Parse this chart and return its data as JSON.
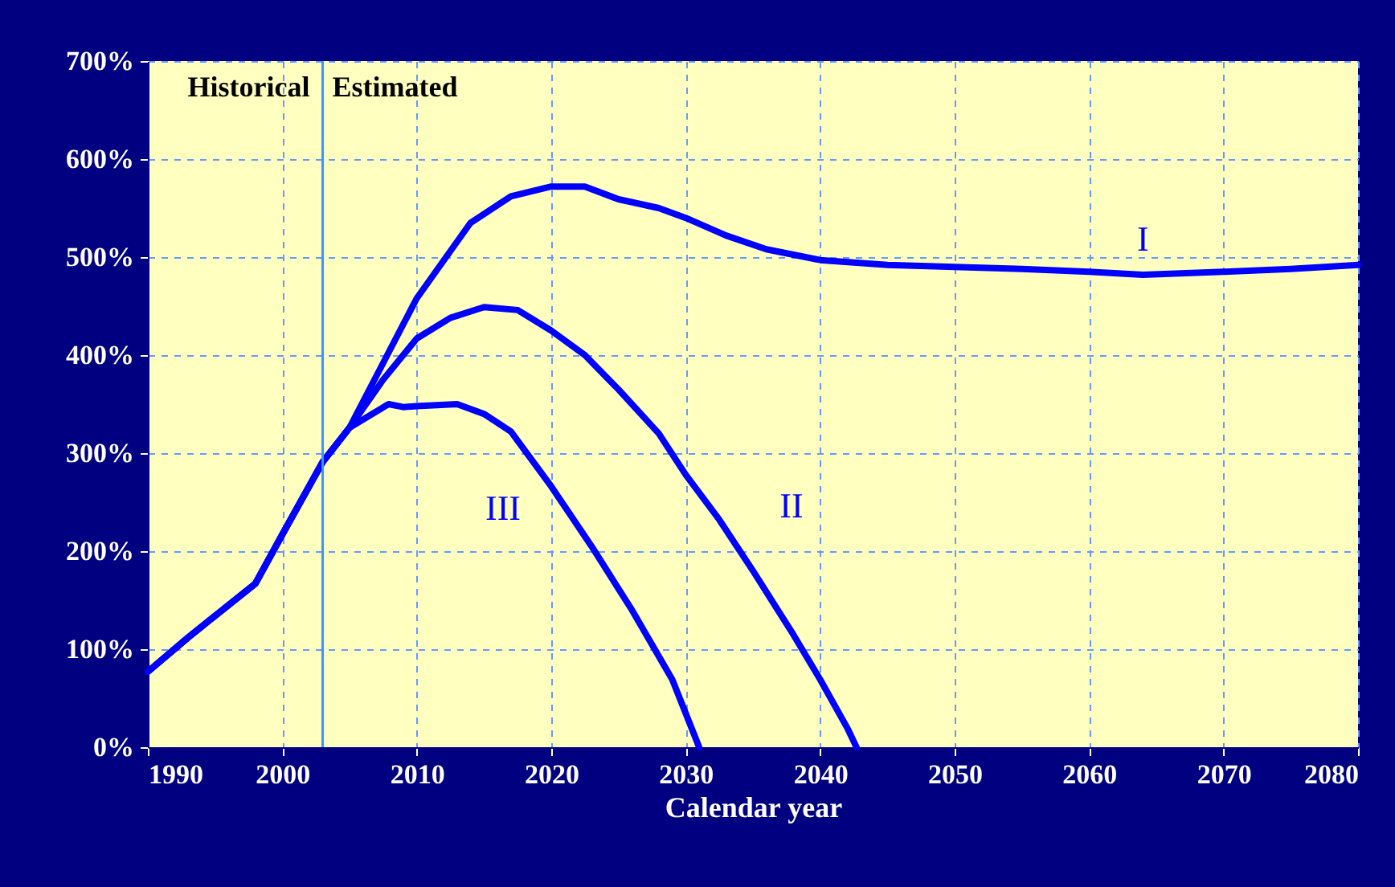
{
  "chart_data": {
    "type": "line",
    "xlabel": "Calendar year",
    "xlim": [
      1990,
      2080
    ],
    "xticks": [
      1990,
      2000,
      2010,
      2020,
      2030,
      2040,
      2050,
      2060,
      2070,
      2080
    ],
    "ylim": [
      0,
      700
    ],
    "yticks": [
      {
        "value": 0,
        "label": "0%"
      },
      {
        "value": 100,
        "label": "100%"
      },
      {
        "value": 200,
        "label": "200%"
      },
      {
        "value": 300,
        "label": "300%"
      },
      {
        "value": 400,
        "label": "400%"
      },
      {
        "value": 500,
        "label": "500%"
      },
      {
        "value": 600,
        "label": "600%"
      },
      {
        "value": 700,
        "label": "700%"
      }
    ],
    "grid": true,
    "line_style": "solid",
    "ref_lines": [
      {
        "axis": "x",
        "value": 2003,
        "color": "#3399ff"
      }
    ],
    "annotations": [
      "Historical",
      "Estimated"
    ],
    "series": [
      {
        "name": "I",
        "color": "#0000ff",
        "x": [
          1990,
          1993,
          1998,
          2000,
          2003,
          2005,
          2007.5,
          2010,
          2014,
          2017,
          2020,
          2022.5,
          2025,
          2028,
          2030,
          2033,
          2036,
          2040,
          2045,
          2050,
          2055,
          2060,
          2064,
          2070,
          2075,
          2080
        ],
        "values": [
          77,
          112,
          167,
          217,
          291,
          326,
          392,
          458,
          535,
          562,
          572,
          572,
          559,
          550,
          540,
          522,
          508,
          497,
          492,
          490,
          488,
          485,
          482,
          485,
          488,
          492
        ]
      },
      {
        "name": "II",
        "color": "#0000ff",
        "x": [
          1990,
          1993,
          1998,
          2000,
          2003,
          2005,
          2007.5,
          2010,
          2012.5,
          2015,
          2017.5,
          2020,
          2022.5,
          2025,
          2028,
          2030,
          2032.5,
          2035,
          2038,
          2040,
          2042,
          2042.7
        ],
        "values": [
          77,
          112,
          167,
          217,
          291,
          326,
          375,
          417,
          438,
          449,
          446,
          425,
          400,
          365,
          320,
          278,
          232,
          180,
          115,
          69,
          20,
          0
        ]
      },
      {
        "name": "III",
        "color": "#0000ff",
        "x": [
          1990,
          1993,
          1998,
          2000,
          2003,
          2005,
          2007.9,
          2009,
          2010,
          2013,
          2015,
          2017,
          2020,
          2023,
          2026,
          2029,
          2031
        ],
        "values": [
          77,
          112,
          167,
          217,
          291,
          326,
          350,
          347,
          348,
          350,
          340,
          322,
          266,
          205,
          140,
          69,
          0
        ]
      }
    ]
  }
}
